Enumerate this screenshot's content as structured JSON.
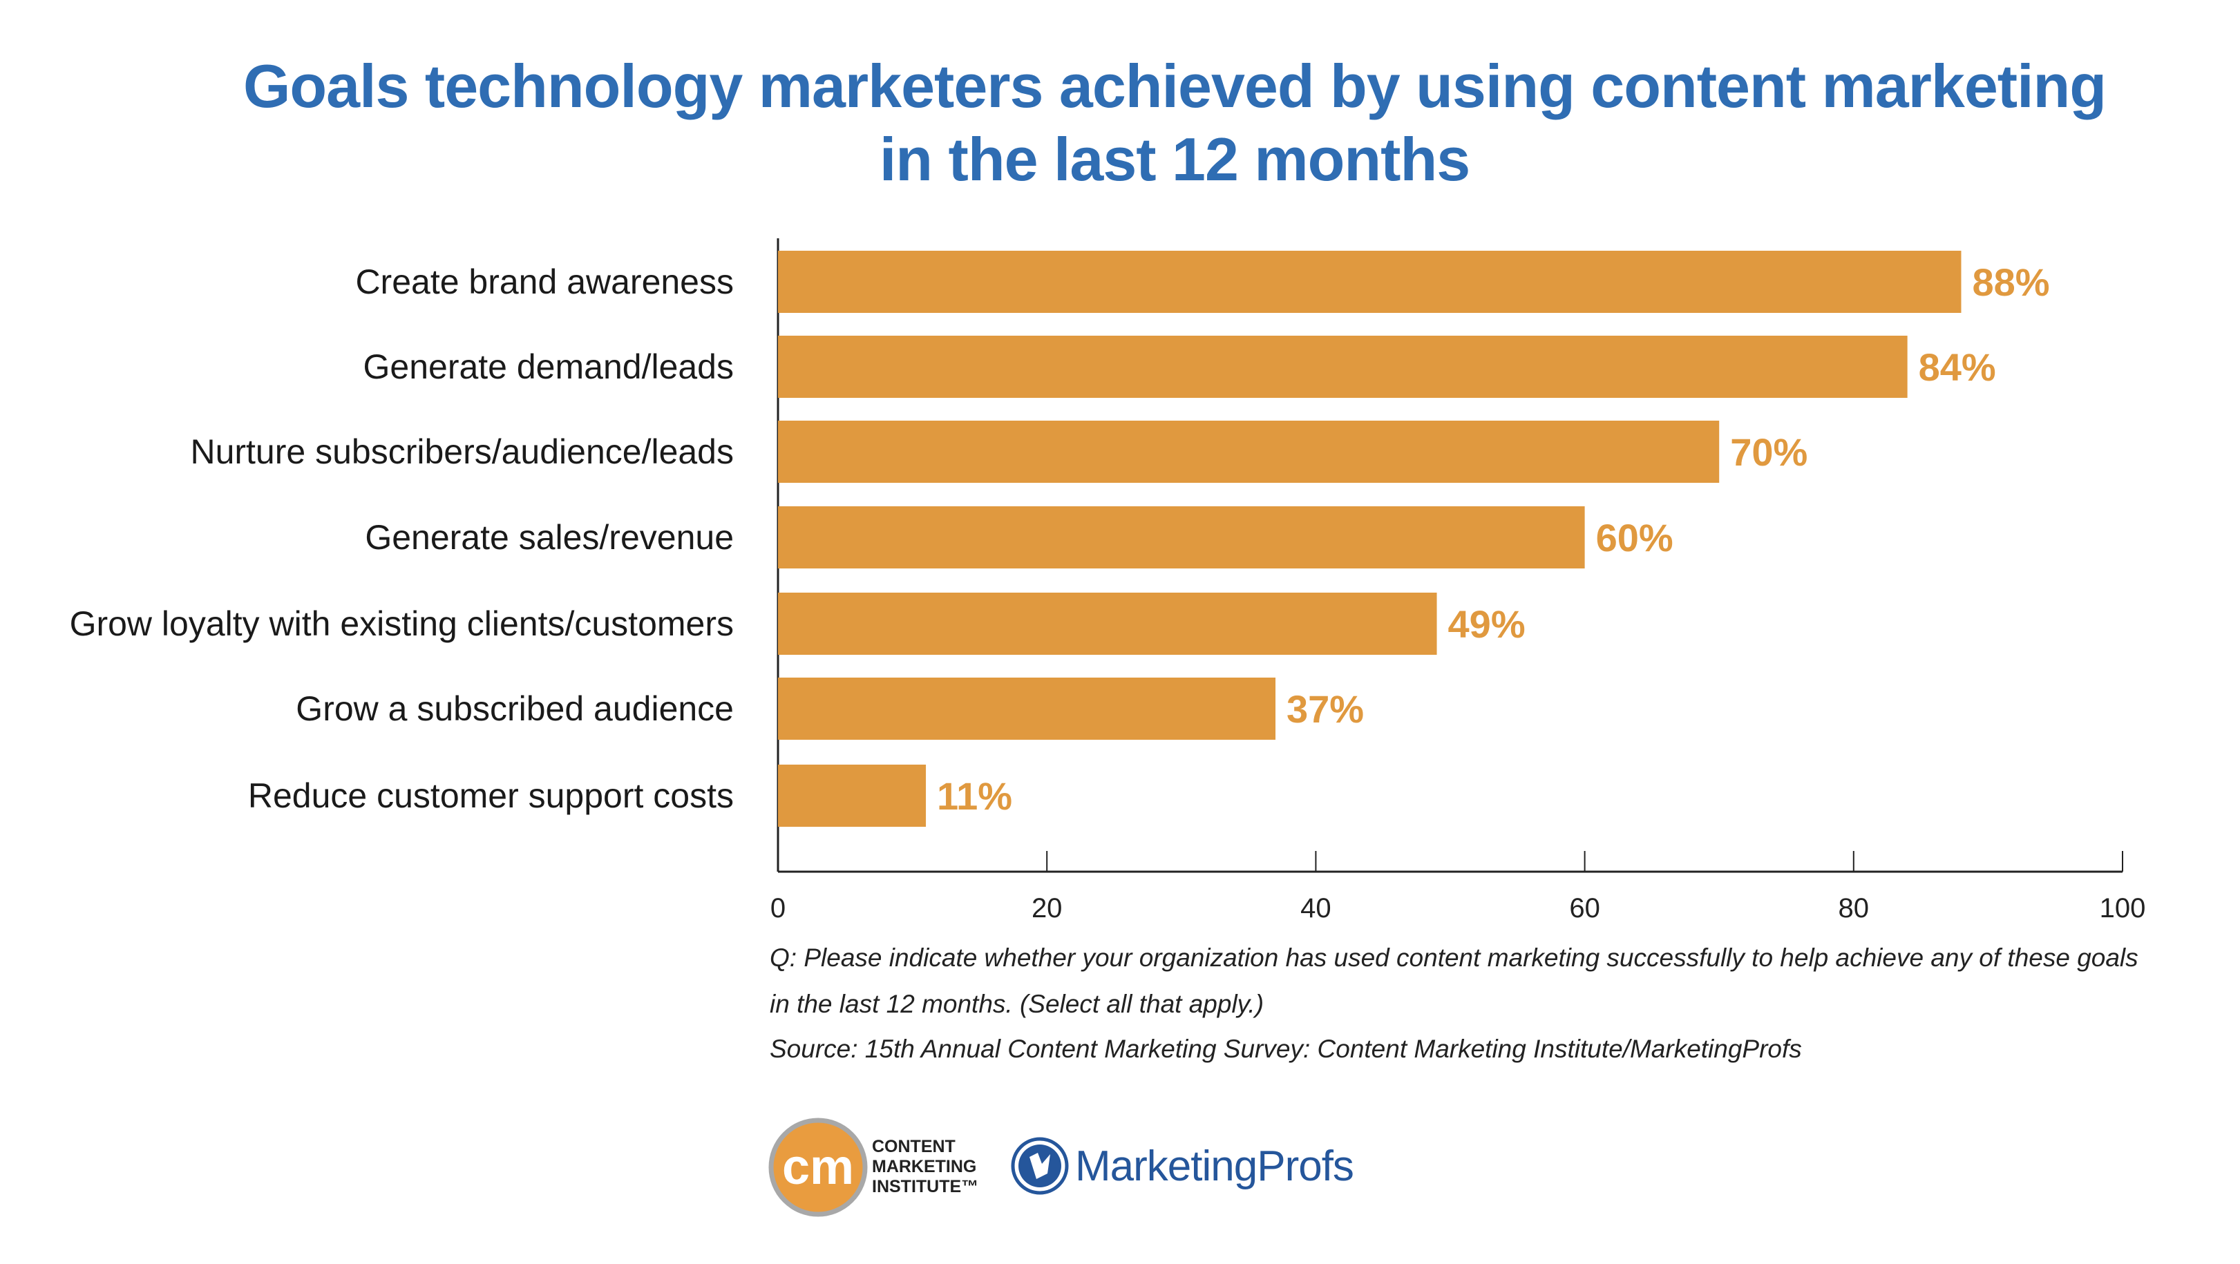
{
  "chart_data": {
    "type": "bar",
    "orientation": "horizontal",
    "title_lines": [
      "Goals technology marketers achieved by using content marketing",
      "in the last 12 months"
    ],
    "categories": [
      "Create brand awareness",
      "Generate demand/leads",
      "Nurture subscribers/audience/leads",
      "Generate sales/revenue",
      "Grow loyalty with existing clients/customers",
      "Grow a subscribed audience",
      "Reduce customer support costs"
    ],
    "values": [
      88,
      84,
      70,
      60,
      49,
      37,
      11
    ],
    "data_labels": [
      "88%",
      "84%",
      "70%",
      "60%",
      "49%",
      "37%",
      "11%"
    ],
    "xlim": [
      0,
      100
    ],
    "x_ticks": [
      "0",
      "20",
      "40",
      "60",
      "80",
      "100"
    ],
    "grid": false,
    "colors": {
      "bar": "#e0993f",
      "label": "#e0993f",
      "title": "#2f6db3"
    }
  },
  "footnote": {
    "question_line1": "Q: Please indicate whether your organization has used content marketing successfully to help achieve any of these goals",
    "question_line2": "in the last 12 months. (Select all that apply.)",
    "source": "Source: 15th Annual Content Marketing Survey: Content Marketing Institute/MarketingProfs"
  },
  "logos": {
    "cmi": {
      "mark": "cm",
      "text": [
        "CONTENT",
        "MARKETING",
        "INSTITUTE™"
      ]
    },
    "mprofs": {
      "text": "MarketingProfs"
    }
  }
}
